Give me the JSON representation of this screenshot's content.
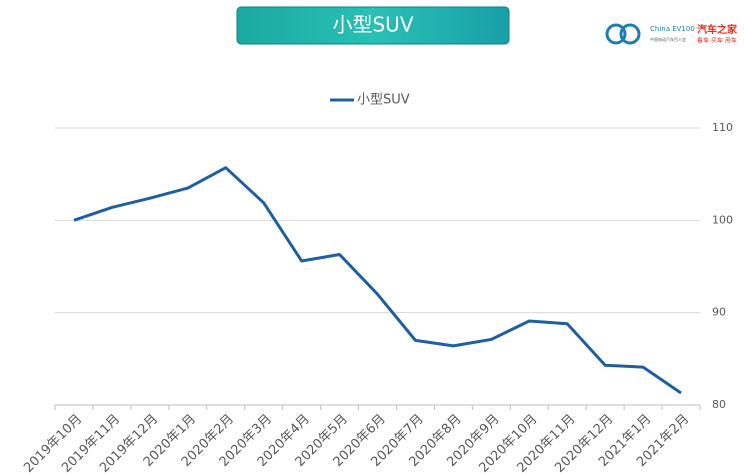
{
  "chart_data": {
    "type": "line",
    "title": "小型SUV",
    "categories": [
      "2019年10月",
      "2019年11月",
      "2019年12月",
      "2020年1月",
      "2020年2月",
      "2020年3月",
      "2020年4月",
      "2020年5月",
      "2020年6月",
      "2020年7月",
      "2020年8月",
      "2020年9月",
      "2020年10月",
      "2020年11月",
      "2020年12月",
      "2021年1月",
      "2021年2月"
    ],
    "series": [
      {
        "name": "小型SUV",
        "color": "#1f5fa0",
        "values": [
          100,
          101.4,
          102.4,
          103.5,
          105.7,
          101.9,
          95.6,
          96.3,
          92.0,
          87.0,
          86.4,
          87.1,
          89.1,
          88.8,
          84.3,
          84.1,
          81.3
        ]
      }
    ],
    "ylim": [
      80,
      110
    ],
    "yticks": [
      80,
      90,
      100,
      110
    ],
    "grid": true,
    "y_axis_side": "right",
    "legend": "top"
  },
  "logo": {
    "brand1": "China EV100",
    "brand1_sub": "中国电动汽车百人会",
    "brand2": "汽车之家",
    "brand2_sub": "看车·买车·用车"
  }
}
